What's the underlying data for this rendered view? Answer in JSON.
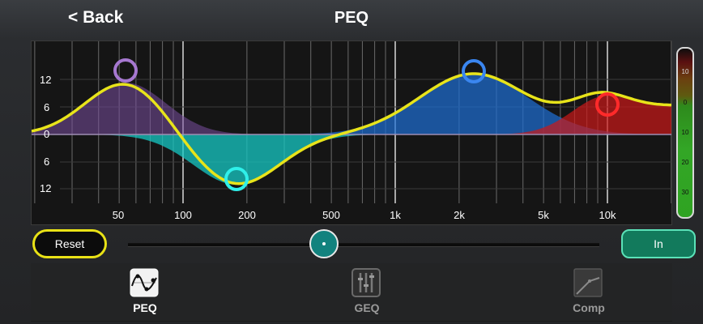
{
  "header": {
    "back_label": "< Back",
    "title": "PEQ"
  },
  "graph": {
    "y_labels": [
      "12",
      "6",
      "0",
      "6",
      "12"
    ],
    "x_labels": [
      "50",
      "100",
      "200",
      "500",
      "1k",
      "2k",
      "5k",
      "10k"
    ],
    "colors": {
      "curve": "#e8e41a",
      "band1": "#7a4ea0",
      "band2": "#16c8c4",
      "band3": "#1e6fd6",
      "band4": "#cc1818"
    }
  },
  "meter": {
    "labels": [
      "10",
      "0",
      "10",
      "20",
      "30"
    ]
  },
  "controls": {
    "reset_label": "Reset",
    "in_label": "In"
  },
  "tabs": [
    {
      "label": "PEQ",
      "icon": "peq-curve-icon",
      "active": true
    },
    {
      "label": "GEQ",
      "icon": "geq-sliders-icon",
      "active": false
    },
    {
      "label": "Comp",
      "icon": "compressor-graph-icon",
      "active": false
    }
  ]
}
